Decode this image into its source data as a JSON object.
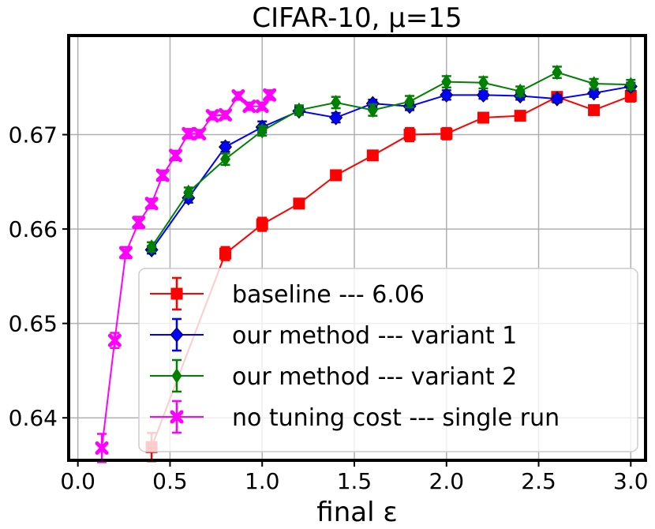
{
  "chart_data": {
    "type": "line",
    "title": "CIFAR-10, μ=15",
    "xlabel": "final ε",
    "ylabel": "",
    "xlim": [
      -0.05,
      3.08
    ],
    "ylim": [
      0.6355,
      0.6805
    ],
    "xticks": [
      0.0,
      0.5,
      1.0,
      1.5,
      2.0,
      2.5,
      3.0
    ],
    "xtick_labels": [
      "0.0",
      "0.5",
      "1.0",
      "1.5",
      "2.0",
      "2.5",
      "3.0"
    ],
    "yticks": [
      0.64,
      0.65,
      0.66,
      0.67
    ],
    "ytick_labels": [
      "0.64",
      "0.65",
      "0.66",
      "0.67"
    ],
    "grid": true,
    "legend_position": "lower-right",
    "series": [
      {
        "name": "baseline --- 6.06",
        "color": "#ff0000",
        "marker": "square",
        "x": [
          0.4,
          0.8,
          1.0,
          1.2,
          1.4,
          1.6,
          1.8,
          2.0,
          2.2,
          2.4,
          2.6,
          2.8,
          3.0
        ],
        "y": [
          0.6369,
          0.6574,
          0.6605,
          0.6627,
          0.6657,
          0.6678,
          0.67,
          0.6701,
          0.6718,
          0.672,
          0.674,
          0.6726,
          0.6741
        ],
        "err": [
          0.0015,
          0.0007,
          0.0007,
          0.0004,
          0.0005,
          0.0004,
          0.0007,
          0.0006,
          0.0005,
          0.0004,
          0.0005,
          0.0005,
          0.0006
        ]
      },
      {
        "name": "our method --- variant 1",
        "color": "#0000ff",
        "marker": "diamond",
        "x": [
          0.4,
          0.6,
          0.8,
          1.0,
          1.2,
          1.4,
          1.6,
          1.8,
          2.0,
          2.2,
          2.4,
          2.6,
          2.8,
          3.0
        ],
        "y": [
          0.6578,
          0.6633,
          0.6687,
          0.6708,
          0.6725,
          0.6718,
          0.6733,
          0.673,
          0.6742,
          0.6742,
          0.6741,
          0.6738,
          0.6744,
          0.6751
        ],
        "err": [
          0.0004,
          0.0005,
          0.0005,
          0.0006,
          0.0004,
          0.0005,
          0.0004,
          0.0004,
          0.0005,
          0.0004,
          0.0004,
          0.0004,
          0.0004,
          0.0004
        ]
      },
      {
        "name": "our method --- variant 2",
        "color": "#008000",
        "marker": "thin_diamond",
        "x": [
          0.4,
          0.6,
          0.8,
          1.0,
          1.2,
          1.4,
          1.6,
          1.8,
          2.0,
          2.2,
          2.4,
          2.6,
          2.8,
          3.0
        ],
        "y": [
          0.6581,
          0.6639,
          0.6674,
          0.6704,
          0.6726,
          0.6734,
          0.6726,
          0.6735,
          0.6756,
          0.6755,
          0.6746,
          0.6766,
          0.6754,
          0.6753
        ],
        "err": [
          0.0005,
          0.0005,
          0.0006,
          0.0005,
          0.0005,
          0.0006,
          0.0006,
          0.0006,
          0.0006,
          0.0006,
          0.0005,
          0.0006,
          0.0005,
          0.0005
        ]
      },
      {
        "name": "no tuning cost --- single run",
        "color": "#ff00ff",
        "marker": "x",
        "x": [
          0.13,
          0.2,
          0.26,
          0.33,
          0.4,
          0.46,
          0.53,
          0.6,
          0.66,
          0.73,
          0.8,
          0.87,
          0.93,
          1.0,
          1.04
        ],
        "y": [
          0.6368,
          0.6482,
          0.6575,
          0.6607,
          0.6627,
          0.6657,
          0.6678,
          0.6701,
          0.6701,
          0.672,
          0.6721,
          0.6741,
          0.673,
          0.673,
          0.6742
        ],
        "err": [
          0.0015,
          0.0008,
          0.0006,
          0.0006,
          0.0005,
          0.0005,
          0.0005,
          0.0005,
          0.0004,
          0.0004,
          0.0004,
          0.0004,
          0.0004,
          0.0004,
          0.0005
        ]
      }
    ]
  }
}
